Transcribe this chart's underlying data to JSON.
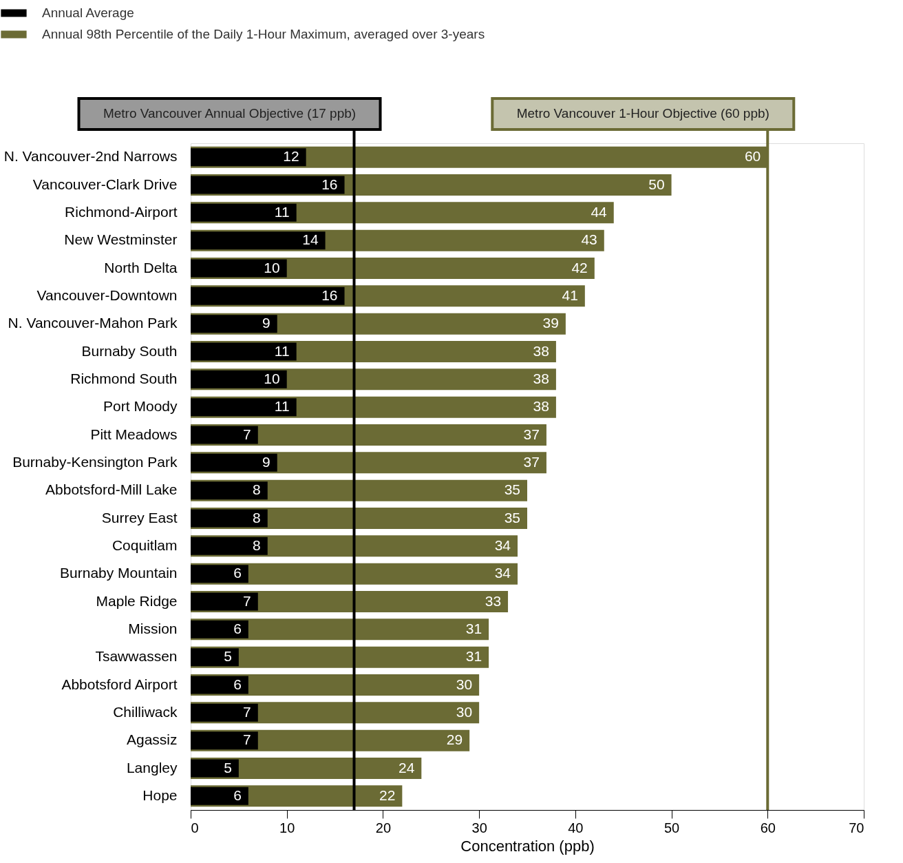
{
  "chart_data": {
    "type": "bar",
    "orientation": "horizontal",
    "categories": [
      "N. Vancouver-2nd Narrows",
      "Vancouver-Clark Drive",
      "Richmond-Airport",
      "New Westminster",
      "North Delta",
      "Vancouver-Downtown",
      "N. Vancouver-Mahon Park",
      "Burnaby South",
      "Richmond South",
      "Port Moody",
      "Pitt Meadows",
      "Burnaby-Kensington Park",
      "Abbotsford-Mill Lake",
      "Surrey East",
      "Coquitlam",
      "Burnaby Mountain",
      "Maple Ridge",
      "Mission",
      "Tsawwassen",
      "Abbotsford Airport",
      "Chilliwack",
      "Agassiz",
      "Langley",
      "Hope"
    ],
    "series": [
      {
        "name": "Annual Average",
        "color": "#000000",
        "values": [
          12,
          16,
          11,
          14,
          10,
          16,
          9,
          11,
          10,
          11,
          7,
          9,
          8,
          8,
          8,
          6,
          7,
          6,
          5,
          6,
          7,
          7,
          5,
          6
        ]
      },
      {
        "name": "Annual 98th Percentile of the Daily 1-Hour Maximum, averaged over 3-years",
        "color": "#6b6b35",
        "values": [
          60,
          50,
          44,
          43,
          42,
          41,
          39,
          38,
          38,
          38,
          37,
          37,
          35,
          35,
          34,
          34,
          33,
          31,
          31,
          30,
          30,
          29,
          24,
          22
        ]
      }
    ],
    "xlim": [
      0,
      70
    ],
    "xticks": [
      0,
      10,
      20,
      30,
      40,
      50,
      60,
      70
    ],
    "xlabel": "Concentration (ppb)",
    "data_labels": true,
    "legend": "top left",
    "grid": false,
    "ref_lines": [
      {
        "axis": "x",
        "value": 17,
        "label": "Metro Vancouver Annual Objective (17 ppb)",
        "color": "#000000"
      },
      {
        "axis": "x",
        "value": 60,
        "label": "Metro Vancouver 1-Hour Objective (60 ppb)",
        "color": "#6b6b35"
      }
    ]
  }
}
